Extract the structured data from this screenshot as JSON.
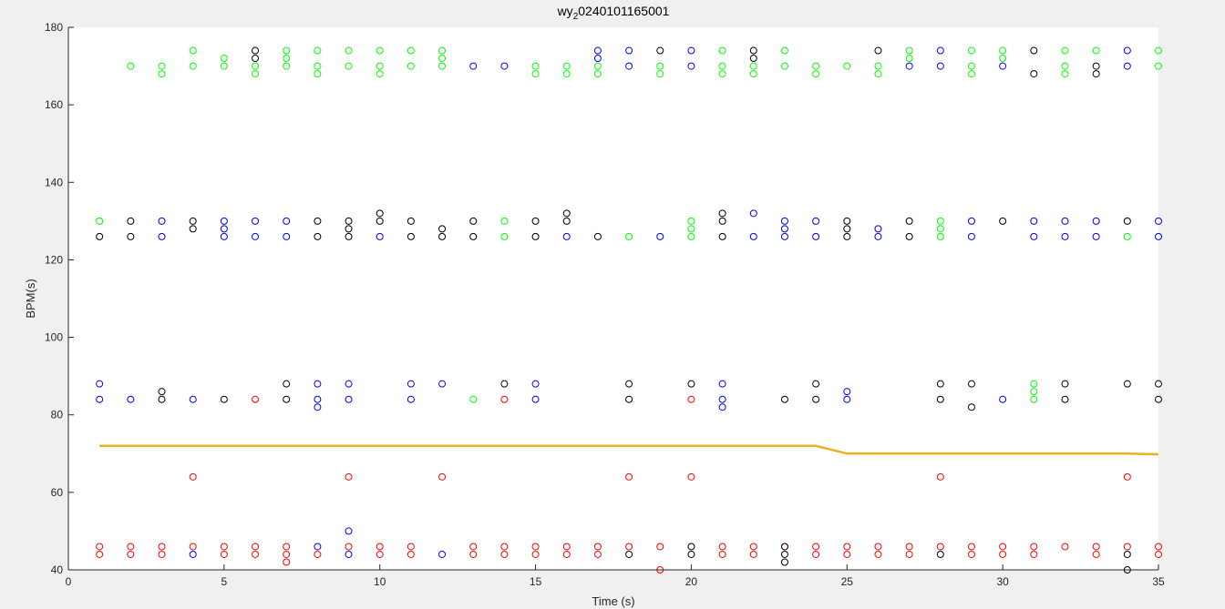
{
  "chart_data": {
    "type": "scatter",
    "title_prefix": "wy",
    "title_sub": "2",
    "title_suffix": "0240101165001",
    "xlabel": "Time (s)",
    "ylabel": "BPM(s)",
    "xlim": [
      0,
      35
    ],
    "ylim": [
      40,
      180
    ],
    "xticks": [
      0,
      5,
      10,
      15,
      20,
      25,
      30,
      35
    ],
    "yticks": [
      40,
      60,
      80,
      100,
      120,
      140,
      160,
      180
    ],
    "grid": false,
    "colors": {
      "red": "#ff0000",
      "blue": "#0000ff",
      "black": "#000000",
      "green": "#00ff00",
      "line": "#edb120",
      "axes_bg": "#ffffff",
      "figure_bg": "#f0f0f0"
    },
    "line_series": {
      "x": [
        1,
        2,
        3,
        4,
        5,
        6,
        7,
        8,
        9,
        10,
        11,
        12,
        13,
        14,
        15,
        16,
        17,
        18,
        19,
        20,
        21,
        22,
        23,
        24,
        25,
        26,
        27,
        28,
        29,
        30,
        31,
        32,
        33,
        34,
        35
      ],
      "y": [
        72,
        72,
        72,
        72,
        72,
        72,
        72,
        72,
        72,
        72,
        72,
        72,
        72,
        72,
        72,
        72,
        72,
        72,
        72,
        72,
        72,
        72,
        72,
        72,
        70,
        70,
        70,
        70,
        70,
        70,
        70,
        70,
        70,
        70,
        69.8
      ]
    },
    "series": [
      {
        "color_key": "red",
        "points": [
          [
            1,
            44
          ],
          [
            1,
            46
          ],
          [
            2,
            44
          ],
          [
            2,
            46
          ],
          [
            3,
            44
          ],
          [
            3,
            46
          ],
          [
            4,
            46
          ],
          [
            4,
            64
          ],
          [
            5,
            44
          ],
          [
            5,
            46
          ],
          [
            6,
            44
          ],
          [
            6,
            46
          ],
          [
            6,
            84
          ],
          [
            7,
            42
          ],
          [
            7,
            44
          ],
          [
            7,
            46
          ],
          [
            8,
            44
          ],
          [
            9,
            46
          ],
          [
            9,
            64
          ],
          [
            10,
            44
          ],
          [
            10,
            46
          ],
          [
            11,
            44
          ],
          [
            11,
            46
          ],
          [
            12,
            64
          ],
          [
            13,
            44
          ],
          [
            13,
            46
          ],
          [
            14,
            44
          ],
          [
            14,
            46
          ],
          [
            14,
            84
          ],
          [
            15,
            44
          ],
          [
            15,
            46
          ],
          [
            16,
            44
          ],
          [
            16,
            46
          ],
          [
            17,
            44
          ],
          [
            17,
            46
          ],
          [
            18,
            46
          ],
          [
            18,
            64
          ],
          [
            19,
            40
          ],
          [
            19,
            46
          ],
          [
            20,
            64
          ],
          [
            20,
            84
          ],
          [
            21,
            44
          ],
          [
            21,
            46
          ],
          [
            22,
            44
          ],
          [
            22,
            46
          ],
          [
            23,
            46
          ],
          [
            24,
            44
          ],
          [
            24,
            46
          ],
          [
            25,
            44
          ],
          [
            25,
            46
          ],
          [
            26,
            44
          ],
          [
            26,
            46
          ],
          [
            27,
            44
          ],
          [
            27,
            46
          ],
          [
            28,
            46
          ],
          [
            28,
            64
          ],
          [
            29,
            44
          ],
          [
            29,
            46
          ],
          [
            30,
            44
          ],
          [
            30,
            46
          ],
          [
            31,
            44
          ],
          [
            31,
            46
          ],
          [
            32,
            46
          ],
          [
            33,
            44
          ],
          [
            33,
            46
          ],
          [
            34,
            46
          ],
          [
            34,
            64
          ],
          [
            35,
            44
          ],
          [
            35,
            46
          ]
        ]
      },
      {
        "color_key": "blue",
        "points": [
          [
            1,
            84
          ],
          [
            1,
            88
          ],
          [
            2,
            84
          ],
          [
            3,
            126
          ],
          [
            3,
            130
          ],
          [
            4,
            44
          ],
          [
            4,
            84
          ],
          [
            5,
            126
          ],
          [
            5,
            128
          ],
          [
            5,
            130
          ],
          [
            6,
            126
          ],
          [
            6,
            130
          ],
          [
            7,
            126
          ],
          [
            7,
            130
          ],
          [
            8,
            46
          ],
          [
            8,
            82
          ],
          [
            8,
            84
          ],
          [
            8,
            88
          ],
          [
            9,
            44
          ],
          [
            9,
            50
          ],
          [
            9,
            84
          ],
          [
            9,
            88
          ],
          [
            10,
            126
          ],
          [
            11,
            84
          ],
          [
            11,
            88
          ],
          [
            12,
            44
          ],
          [
            12,
            88
          ],
          [
            13,
            170
          ],
          [
            14,
            170
          ],
          [
            15,
            84
          ],
          [
            15,
            88
          ],
          [
            16,
            126
          ],
          [
            17,
            172
          ],
          [
            17,
            174
          ],
          [
            18,
            170
          ],
          [
            18,
            174
          ],
          [
            19,
            126
          ],
          [
            20,
            170
          ],
          [
            20,
            174
          ],
          [
            21,
            82
          ],
          [
            21,
            84
          ],
          [
            21,
            88
          ],
          [
            22,
            126
          ],
          [
            22,
            132
          ],
          [
            23,
            126
          ],
          [
            23,
            128
          ],
          [
            23,
            130
          ],
          [
            24,
            126
          ],
          [
            24,
            130
          ],
          [
            25,
            84
          ],
          [
            25,
            86
          ],
          [
            26,
            126
          ],
          [
            26,
            128
          ],
          [
            27,
            170
          ],
          [
            28,
            170
          ],
          [
            28,
            174
          ],
          [
            29,
            126
          ],
          [
            29,
            130
          ],
          [
            30,
            84
          ],
          [
            30,
            170
          ],
          [
            31,
            126
          ],
          [
            31,
            130
          ],
          [
            32,
            126
          ],
          [
            32,
            130
          ],
          [
            33,
            126
          ],
          [
            33,
            130
          ],
          [
            34,
            170
          ],
          [
            34,
            174
          ],
          [
            35,
            126
          ],
          [
            35,
            130
          ]
        ]
      },
      {
        "color_key": "black",
        "points": [
          [
            1,
            126
          ],
          [
            2,
            126
          ],
          [
            2,
            130
          ],
          [
            3,
            84
          ],
          [
            3,
            86
          ],
          [
            4,
            128
          ],
          [
            4,
            130
          ],
          [
            5,
            84
          ],
          [
            6,
            172
          ],
          [
            6,
            174
          ],
          [
            7,
            84
          ],
          [
            7,
            88
          ],
          [
            8,
            126
          ],
          [
            8,
            130
          ],
          [
            9,
            126
          ],
          [
            9,
            128
          ],
          [
            9,
            130
          ],
          [
            10,
            130
          ],
          [
            10,
            132
          ],
          [
            11,
            126
          ],
          [
            11,
            130
          ],
          [
            12,
            126
          ],
          [
            12,
            128
          ],
          [
            13,
            126
          ],
          [
            13,
            130
          ],
          [
            14,
            88
          ],
          [
            15,
            126
          ],
          [
            15,
            130
          ],
          [
            16,
            130
          ],
          [
            16,
            132
          ],
          [
            17,
            126
          ],
          [
            18,
            44
          ],
          [
            18,
            84
          ],
          [
            18,
            88
          ],
          [
            19,
            174
          ],
          [
            20,
            44
          ],
          [
            20,
            46
          ],
          [
            20,
            88
          ],
          [
            21,
            126
          ],
          [
            21,
            130
          ],
          [
            21,
            132
          ],
          [
            22,
            172
          ],
          [
            22,
            174
          ],
          [
            23,
            42
          ],
          [
            23,
            44
          ],
          [
            23,
            46
          ],
          [
            23,
            84
          ],
          [
            24,
            84
          ],
          [
            24,
            88
          ],
          [
            25,
            126
          ],
          [
            25,
            128
          ],
          [
            25,
            130
          ],
          [
            26,
            174
          ],
          [
            27,
            126
          ],
          [
            27,
            130
          ],
          [
            28,
            44
          ],
          [
            28,
            84
          ],
          [
            28,
            88
          ],
          [
            29,
            82
          ],
          [
            29,
            88
          ],
          [
            30,
            130
          ],
          [
            31,
            168
          ],
          [
            31,
            174
          ],
          [
            32,
            84
          ],
          [
            32,
            88
          ],
          [
            33,
            168
          ],
          [
            33,
            170
          ],
          [
            34,
            40
          ],
          [
            34,
            44
          ],
          [
            34,
            88
          ],
          [
            34,
            130
          ],
          [
            35,
            84
          ],
          [
            35,
            88
          ]
        ]
      },
      {
        "color_key": "green",
        "points": [
          [
            1,
            130
          ],
          [
            2,
            170
          ],
          [
            3,
            168
          ],
          [
            3,
            170
          ],
          [
            4,
            170
          ],
          [
            4,
            174
          ],
          [
            5,
            170
          ],
          [
            5,
            172
          ],
          [
            6,
            168
          ],
          [
            6,
            170
          ],
          [
            7,
            170
          ],
          [
            7,
            172
          ],
          [
            7,
            174
          ],
          [
            8,
            168
          ],
          [
            8,
            170
          ],
          [
            8,
            174
          ],
          [
            9,
            170
          ],
          [
            9,
            174
          ],
          [
            10,
            168
          ],
          [
            10,
            170
          ],
          [
            10,
            174
          ],
          [
            11,
            170
          ],
          [
            11,
            174
          ],
          [
            12,
            170
          ],
          [
            12,
            172
          ],
          [
            12,
            174
          ],
          [
            13,
            84
          ],
          [
            14,
            126
          ],
          [
            14,
            130
          ],
          [
            15,
            168
          ],
          [
            15,
            170
          ],
          [
            16,
            168
          ],
          [
            16,
            170
          ],
          [
            17,
            168
          ],
          [
            17,
            170
          ],
          [
            18,
            126
          ],
          [
            19,
            168
          ],
          [
            19,
            170
          ],
          [
            20,
            126
          ],
          [
            20,
            128
          ],
          [
            20,
            130
          ],
          [
            21,
            168
          ],
          [
            21,
            170
          ],
          [
            21,
            174
          ],
          [
            22,
            168
          ],
          [
            22,
            170
          ],
          [
            23,
            170
          ],
          [
            23,
            174
          ],
          [
            24,
            168
          ],
          [
            24,
            170
          ],
          [
            25,
            170
          ],
          [
            26,
            168
          ],
          [
            26,
            170
          ],
          [
            27,
            172
          ],
          [
            27,
            174
          ],
          [
            28,
            126
          ],
          [
            28,
            128
          ],
          [
            28,
            130
          ],
          [
            29,
            168
          ],
          [
            29,
            170
          ],
          [
            29,
            174
          ],
          [
            30,
            172
          ],
          [
            30,
            174
          ],
          [
            31,
            84
          ],
          [
            31,
            86
          ],
          [
            31,
            88
          ],
          [
            32,
            168
          ],
          [
            32,
            170
          ],
          [
            32,
            174
          ],
          [
            33,
            174
          ],
          [
            34,
            126
          ],
          [
            35,
            170
          ],
          [
            35,
            174
          ]
        ]
      }
    ]
  }
}
